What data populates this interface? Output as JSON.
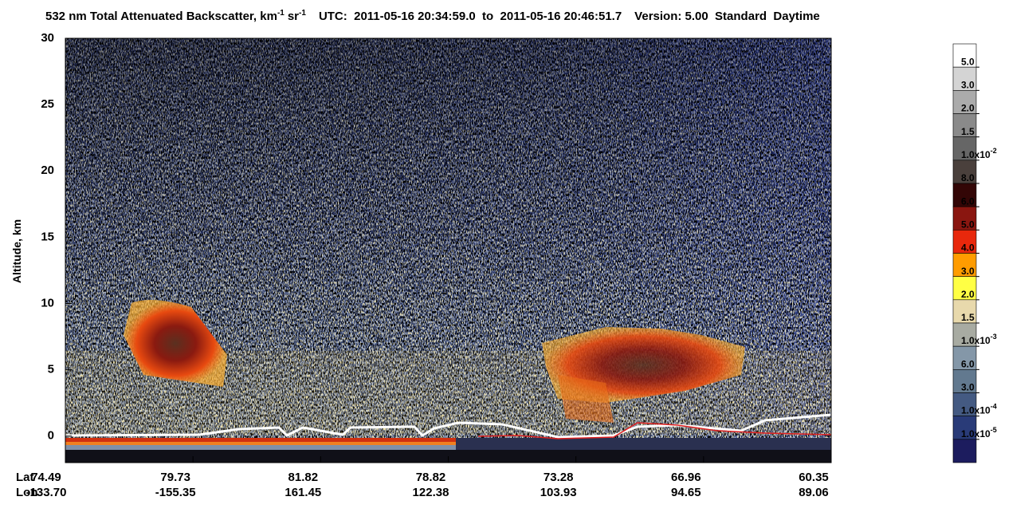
{
  "chart_data": {
    "type": "curtain",
    "title": {
      "main": "532 nm Total Attenuated Backscatter, km",
      "exp1": "-1",
      "unit2": "sr",
      "exp2": "-1",
      "time": "UTC:  2011-05-16 20:34:59.0  to  2011-05-16 20:46:51.7",
      "version": "Version: 5.00  Standard  Daytime"
    },
    "ylabel": "Altitude, km",
    "ylim": [
      -2,
      30
    ],
    "yticks": [
      0,
      5,
      10,
      15,
      20,
      25,
      30
    ],
    "lat_label": "Lat",
    "lon_label": "Lon",
    "lat": [
      74.49,
      79.73,
      81.82,
      78.82,
      73.28,
      66.96,
      60.35
    ],
    "lon": [
      {
        "value": -133.7,
        "label": "-133.70"
      },
      -155.35,
      161.45,
      122.38,
      103.93,
      94.65,
      89.06
    ],
    "colorbar": {
      "colors": [
        "#ffffff",
        "#d4d4d4",
        "#ababab",
        "#8a8a8a",
        "#666666",
        "#4a403c",
        "#330606",
        "#8a1610",
        "#e8280c",
        "#ff9c00",
        "#ffff44",
        "#e8d9ac",
        "#a8aba2",
        "#8497a8",
        "#62798f",
        "#445a82",
        "#293b78",
        "#1c1c5e"
      ],
      "labels": [
        "5.0",
        "3.0",
        "2.0",
        "1.5",
        {
          "base": "1.0x10",
          "exp": "-2"
        },
        "8.0",
        "6.0",
        "5.0",
        "4.0",
        "3.0",
        "2.0",
        "1.5",
        {
          "base": "1.0x10",
          "exp": "-3"
        },
        "6.0",
        "3.0",
        {
          "base": "1.0x10",
          "exp": "-4"
        },
        {
          "base": "1.0x10",
          "exp": "-5"
        }
      ]
    }
  }
}
